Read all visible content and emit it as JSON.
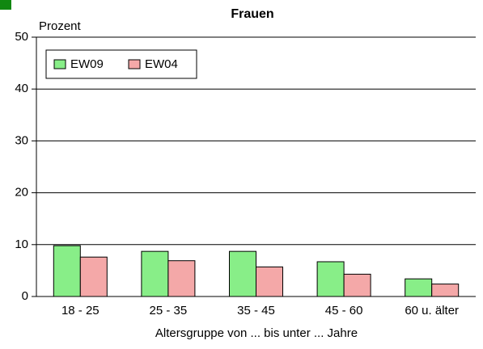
{
  "chart_data": {
    "type": "bar",
    "title": "Frauen",
    "y_label": "Prozent",
    "x_label": "Altersgruppe von ... bis unter ... Jahre",
    "categories": [
      "18 - 25",
      "25 - 35",
      "35 - 45",
      "45 - 60",
      "60 u. älter"
    ],
    "series": [
      {
        "name": "EW09",
        "color": "#88ee88",
        "values": [
          9.8,
          8.7,
          8.7,
          6.7,
          3.4
        ]
      },
      {
        "name": "EW04",
        "color": "#f4a8a8",
        "values": [
          7.6,
          6.9,
          5.7,
          4.3,
          2.4
        ]
      }
    ],
    "ylim": [
      0,
      50
    ],
    "yticks": [
      0,
      10,
      20,
      30,
      40,
      50
    ],
    "grid": true,
    "legend": "upper left"
  }
}
